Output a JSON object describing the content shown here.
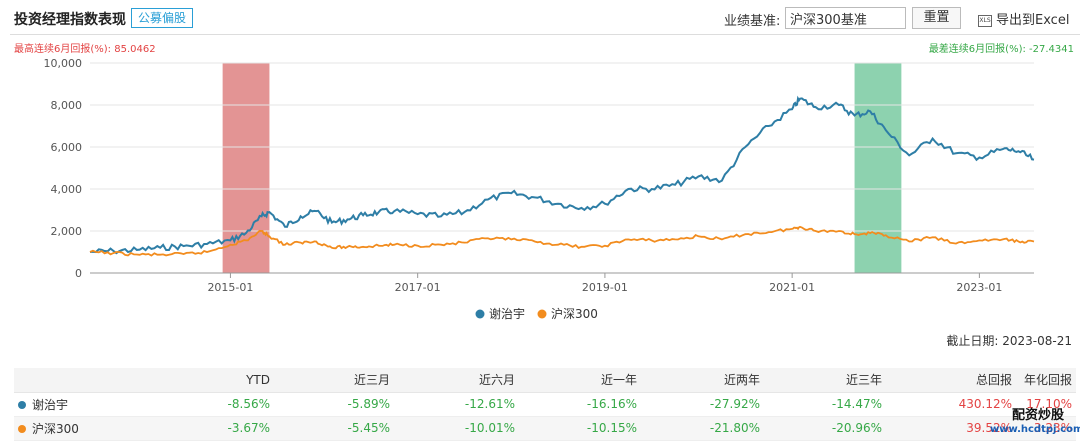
{
  "header": {
    "title": "投资经理指数表现",
    "tag": "公募偏股",
    "benchmark_label": "业绩基准:",
    "benchmark_value": "沪深300基准",
    "reset_label": "重置",
    "export_label": "导出到Excel"
  },
  "stats": {
    "max_return": "最高连续6月回报(%):  85.0462",
    "min_return": "最差连续6月回报(%):  -27.4341"
  },
  "cutoff": "截止日期:  2023-08-21",
  "colors": {
    "manager": "#2e7ea6",
    "index": "#f28c1e",
    "max_band": "#d97070",
    "min_band": "#5cbf8d",
    "positive": "#e34343",
    "negative": "#36a847"
  },
  "chart_data": {
    "type": "line",
    "x_tick_labels": [
      "2015-01",
      "2017-01",
      "2019-01",
      "2021-01",
      "2023-01"
    ],
    "y_tick_labels": [
      "0",
      "2,000",
      "4,000",
      "6,000",
      "8,000",
      "10,000"
    ],
    "ylim": [
      0,
      10000
    ],
    "xlim": [
      "2013-07",
      "2023-08"
    ],
    "highlight_max_period": [
      "2014-12",
      "2015-06"
    ],
    "highlight_min_period": [
      "2021-09",
      "2022-03"
    ],
    "legend_position": "bottom-center",
    "series": [
      {
        "name": "谢治宇",
        "x": [
          "2013-07",
          "2013-10",
          "2014-01",
          "2014-04",
          "2014-07",
          "2014-10",
          "2015-01",
          "2015-03",
          "2015-05",
          "2015-06",
          "2015-08",
          "2015-10",
          "2015-12",
          "2016-02",
          "2016-04",
          "2016-06",
          "2016-08",
          "2016-10",
          "2017-01",
          "2017-04",
          "2017-07",
          "2017-10",
          "2018-01",
          "2018-04",
          "2018-07",
          "2018-10",
          "2019-01",
          "2019-04",
          "2019-07",
          "2019-10",
          "2020-01",
          "2020-04",
          "2020-07",
          "2020-10",
          "2021-01",
          "2021-02",
          "2021-04",
          "2021-07",
          "2021-09",
          "2021-11",
          "2022-01",
          "2022-04",
          "2022-07",
          "2022-10",
          "2023-01",
          "2023-04",
          "2023-06",
          "2023-08"
        ],
        "values": [
          1000,
          1050,
          1100,
          1200,
          1280,
          1380,
          1550,
          1900,
          2700,
          2900,
          2200,
          2700,
          2950,
          2400,
          2550,
          2750,
          2900,
          2950,
          2800,
          2700,
          2900,
          3500,
          3800,
          3600,
          3300,
          3100,
          3300,
          4000,
          4000,
          4200,
          4600,
          4400,
          6000,
          7000,
          7800,
          8300,
          7900,
          8000,
          7500,
          7700,
          6800,
          5600,
          6400,
          5700,
          5500,
          5900,
          5800,
          5400
        ]
      },
      {
        "name": "沪深300",
        "x": [
          "2013-07",
          "2013-10",
          "2014-01",
          "2014-04",
          "2014-07",
          "2014-10",
          "2015-01",
          "2015-03",
          "2015-05",
          "2015-06",
          "2015-08",
          "2015-10",
          "2015-12",
          "2016-02",
          "2016-04",
          "2016-06",
          "2016-08",
          "2016-10",
          "2017-01",
          "2017-04",
          "2017-07",
          "2017-10",
          "2018-01",
          "2018-04",
          "2018-07",
          "2018-10",
          "2019-01",
          "2019-04",
          "2019-07",
          "2019-10",
          "2020-01",
          "2020-04",
          "2020-07",
          "2020-10",
          "2021-01",
          "2021-02",
          "2021-04",
          "2021-07",
          "2021-09",
          "2021-11",
          "2022-01",
          "2022-04",
          "2022-07",
          "2022-10",
          "2023-01",
          "2023-04",
          "2023-06",
          "2023-08"
        ],
        "values": [
          1000,
          950,
          880,
          870,
          900,
          1000,
          1350,
          1550,
          2000,
          1750,
          1350,
          1450,
          1500,
          1200,
          1250,
          1250,
          1300,
          1350,
          1300,
          1350,
          1450,
          1650,
          1600,
          1500,
          1350,
          1250,
          1300,
          1600,
          1550,
          1600,
          1750,
          1600,
          1850,
          1950,
          2100,
          2200,
          2000,
          2000,
          1850,
          1900,
          1800,
          1500,
          1700,
          1400,
          1550,
          1600,
          1500,
          1500
        ]
      }
    ]
  },
  "table": {
    "headers": [
      "",
      "YTD",
      "近三月",
      "近六月",
      "近一年",
      "近两年",
      "近三年",
      "总回报",
      "年化回报"
    ],
    "rows": [
      {
        "name": "谢治宇",
        "values": [
          "-8.56%",
          "-5.89%",
          "-12.61%",
          "-16.16%",
          "-27.92%",
          "-14.47%",
          "430.12%",
          "17.10%"
        ]
      },
      {
        "name": "沪深300",
        "values": [
          "-3.67%",
          "-5.45%",
          "-10.01%",
          "-10.15%",
          "-21.80%",
          "-20.96%",
          "39.52%",
          "3.23%"
        ]
      }
    ]
  },
  "watermark": {
    "text": "配资炒股",
    "url": "www.hcdtpj.com"
  }
}
